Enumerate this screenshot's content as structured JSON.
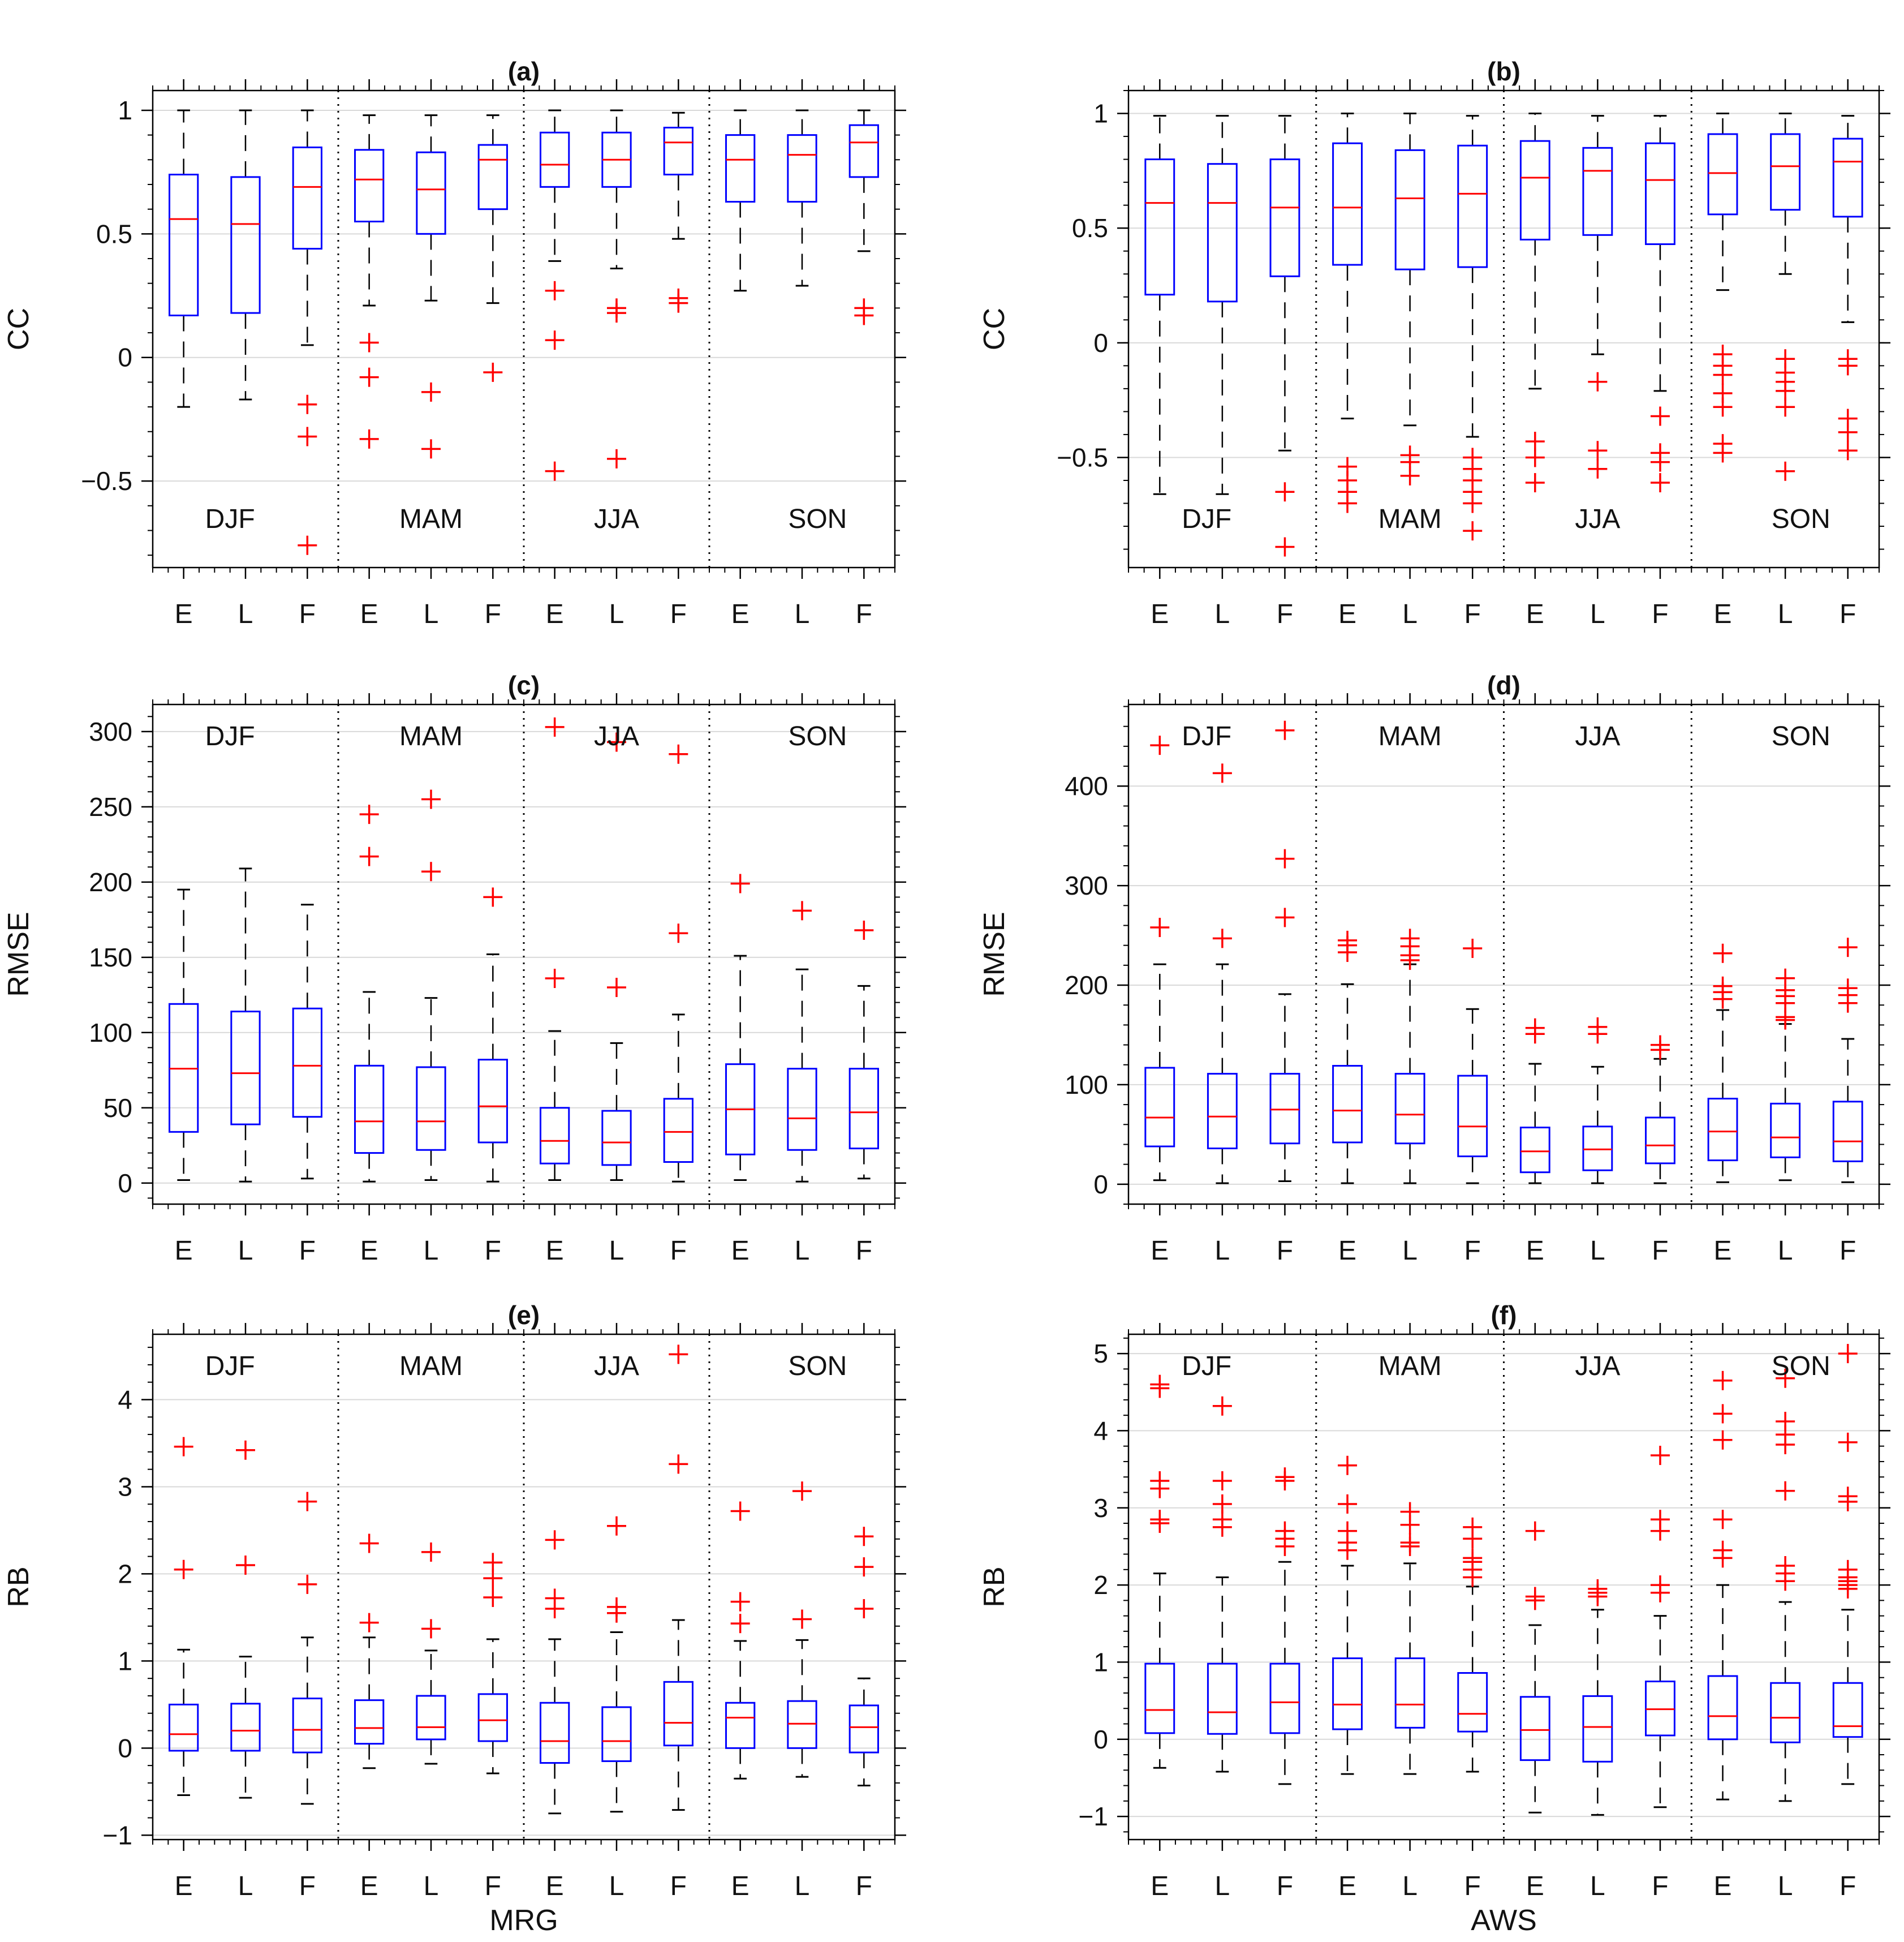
{
  "chart_data": [
    {
      "id": "a",
      "type": "box",
      "title": "(a)",
      "ylabel": "CC",
      "xlabel": "",
      "categories": [
        "E",
        "L",
        "F",
        "E",
        "L",
        "F",
        "E",
        "L",
        "F",
        "E",
        "L",
        "F"
      ],
      "seasons": [
        "DJF",
        "MAM",
        "JJA",
        "SON"
      ],
      "ylim": [
        -0.85,
        1.08
      ],
      "yticks": [
        -0.5,
        0,
        0.5,
        1
      ],
      "ytick_labels": [
        "−0.5",
        "0",
        "0.5",
        "1"
      ],
      "season_label_pos": "bottom",
      "boxes": [
        {
          "min": -0.2,
          "q1": 0.17,
          "median": 0.56,
          "q3": 0.74,
          "max": 1.0,
          "outliers": []
        },
        {
          "min": -0.17,
          "q1": 0.18,
          "median": 0.54,
          "q3": 0.73,
          "max": 1.0,
          "outliers": []
        },
        {
          "min": 0.05,
          "q1": 0.44,
          "median": 0.69,
          "q3": 0.85,
          "max": 1.0,
          "outliers": [
            -0.19,
            -0.32,
            -0.76
          ]
        },
        {
          "min": 0.21,
          "q1": 0.55,
          "median": 0.72,
          "q3": 0.84,
          "max": 0.98,
          "outliers": [
            0.06,
            -0.08,
            -0.33
          ]
        },
        {
          "min": 0.23,
          "q1": 0.5,
          "median": 0.68,
          "q3": 0.83,
          "max": 0.98,
          "outliers": [
            -0.14,
            -0.37
          ]
        },
        {
          "min": 0.22,
          "q1": 0.6,
          "median": 0.8,
          "q3": 0.86,
          "max": 0.98,
          "outliers": [
            -0.06
          ]
        },
        {
          "min": 0.39,
          "q1": 0.69,
          "median": 0.78,
          "q3": 0.91,
          "max": 1.0,
          "outliers": [
            0.27,
            0.07,
            -0.46
          ]
        },
        {
          "min": 0.36,
          "q1": 0.69,
          "median": 0.8,
          "q3": 0.91,
          "max": 1.0,
          "outliers": [
            0.2,
            0.18,
            -0.41
          ]
        },
        {
          "min": 0.48,
          "q1": 0.74,
          "median": 0.87,
          "q3": 0.93,
          "max": 0.99,
          "outliers": [
            0.24,
            0.22
          ]
        },
        {
          "min": 0.27,
          "q1": 0.63,
          "median": 0.8,
          "q3": 0.9,
          "max": 1.0,
          "outliers": []
        },
        {
          "min": 0.29,
          "q1": 0.63,
          "median": 0.82,
          "q3": 0.9,
          "max": 1.0,
          "outliers": []
        },
        {
          "min": 0.43,
          "q1": 0.73,
          "median": 0.87,
          "q3": 0.94,
          "max": 1.0,
          "outliers": [
            0.2,
            0.17
          ]
        }
      ]
    },
    {
      "id": "b",
      "type": "box",
      "title": "(b)",
      "ylabel": "CC",
      "xlabel": "",
      "categories": [
        "E",
        "L",
        "F",
        "E",
        "L",
        "F",
        "E",
        "L",
        "F",
        "E",
        "L",
        "F"
      ],
      "seasons": [
        "DJF",
        "MAM",
        "JJA",
        "SON"
      ],
      "ylim": [
        -0.98,
        1.1
      ],
      "yticks": [
        -0.5,
        0,
        0.5,
        1
      ],
      "ytick_labels": [
        "−0.5",
        "0",
        "0.5",
        "1"
      ],
      "season_label_pos": "bottom",
      "boxes": [
        {
          "min": -0.66,
          "q1": 0.21,
          "median": 0.61,
          "q3": 0.8,
          "max": 0.99,
          "outliers": []
        },
        {
          "min": -0.66,
          "q1": 0.18,
          "median": 0.61,
          "q3": 0.78,
          "max": 0.99,
          "outliers": []
        },
        {
          "min": -0.47,
          "q1": 0.29,
          "median": 0.59,
          "q3": 0.8,
          "max": 0.99,
          "outliers": [
            -0.65,
            -0.89
          ]
        },
        {
          "min": -0.33,
          "q1": 0.34,
          "median": 0.59,
          "q3": 0.87,
          "max": 1.0,
          "outliers": [
            -0.54,
            -0.6,
            -0.65,
            -0.7
          ]
        },
        {
          "min": -0.36,
          "q1": 0.32,
          "median": 0.63,
          "q3": 0.84,
          "max": 1.0,
          "outliers": [
            -0.49,
            -0.52,
            -0.58
          ]
        },
        {
          "min": -0.41,
          "q1": 0.33,
          "median": 0.65,
          "q3": 0.86,
          "max": 0.99,
          "outliers": [
            -0.5,
            -0.55,
            -0.6,
            -0.65,
            -0.7,
            -0.82
          ]
        },
        {
          "min": -0.2,
          "q1": 0.45,
          "median": 0.72,
          "q3": 0.88,
          "max": 1.0,
          "outliers": [
            -0.43,
            -0.5,
            -0.61
          ]
        },
        {
          "min": -0.05,
          "q1": 0.47,
          "median": 0.75,
          "q3": 0.85,
          "max": 0.99,
          "outliers": [
            -0.17,
            -0.47,
            -0.55
          ]
        },
        {
          "min": -0.21,
          "q1": 0.43,
          "median": 0.71,
          "q3": 0.87,
          "max": 0.99,
          "outliers": [
            -0.32,
            -0.48,
            -0.52,
            -0.61
          ]
        },
        {
          "min": 0.23,
          "q1": 0.56,
          "median": 0.74,
          "q3": 0.91,
          "max": 1.0,
          "outliers": [
            -0.05,
            -0.1,
            -0.14,
            -0.22,
            -0.28,
            -0.44,
            -0.48
          ]
        },
        {
          "min": 0.3,
          "q1": 0.58,
          "median": 0.77,
          "q3": 0.91,
          "max": 1.0,
          "outliers": [
            -0.07,
            -0.13,
            -0.17,
            -0.21,
            -0.28,
            -0.56
          ]
        },
        {
          "min": 0.09,
          "q1": 0.55,
          "median": 0.79,
          "q3": 0.89,
          "max": 0.99,
          "outliers": [
            -0.07,
            -0.1,
            -0.33,
            -0.39,
            -0.47
          ]
        }
      ]
    },
    {
      "id": "c",
      "type": "box",
      "title": "(c)",
      "ylabel": "RMSE",
      "xlabel": "",
      "categories": [
        "E",
        "L",
        "F",
        "E",
        "L",
        "F",
        "E",
        "L",
        "F",
        "E",
        "L",
        "F"
      ],
      "seasons": [
        "DJF",
        "MAM",
        "JJA",
        "SON"
      ],
      "ylim": [
        -14,
        318
      ],
      "yticks": [
        0,
        50,
        100,
        150,
        200,
        250,
        300
      ],
      "ytick_labels": [
        "0",
        "50",
        "100",
        "150",
        "200",
        "250",
        "300"
      ],
      "season_label_pos": "top",
      "boxes": [
        {
          "min": 2,
          "q1": 34,
          "median": 76,
          "q3": 119,
          "max": 195,
          "outliers": []
        },
        {
          "min": 1,
          "q1": 39,
          "median": 73,
          "q3": 114,
          "max": 209,
          "outliers": []
        },
        {
          "min": 3,
          "q1": 44,
          "median": 78,
          "q3": 116,
          "max": 185,
          "outliers": []
        },
        {
          "min": 1,
          "q1": 20,
          "median": 41,
          "q3": 78,
          "max": 127,
          "outliers": [
            245,
            217
          ]
        },
        {
          "min": 2,
          "q1": 22,
          "median": 41,
          "q3": 77,
          "max": 123,
          "outliers": [
            255,
            207
          ]
        },
        {
          "min": 1,
          "q1": 27,
          "median": 51,
          "q3": 82,
          "max": 152,
          "outliers": [
            190
          ]
        },
        {
          "min": 2,
          "q1": 13,
          "median": 28,
          "q3": 50,
          "max": 101,
          "outliers": [
            303,
            136
          ]
        },
        {
          "min": 2,
          "q1": 12,
          "median": 27,
          "q3": 48,
          "max": 93,
          "outliers": [
            293,
            130
          ]
        },
        {
          "min": 1,
          "q1": 14,
          "median": 34,
          "q3": 56,
          "max": 112,
          "outliers": [
            285,
            166
          ]
        },
        {
          "min": 2,
          "q1": 19,
          "median": 49,
          "q3": 79,
          "max": 151,
          "outliers": [
            199
          ]
        },
        {
          "min": 1,
          "q1": 22,
          "median": 43,
          "q3": 76,
          "max": 142,
          "outliers": [
            181
          ]
        },
        {
          "min": 3,
          "q1": 23,
          "median": 47,
          "q3": 76,
          "max": 131,
          "outliers": [
            168
          ]
        }
      ]
    },
    {
      "id": "d",
      "type": "box",
      "title": "(d)",
      "ylabel": "RMSE",
      "xlabel": "",
      "categories": [
        "E",
        "L",
        "F",
        "E",
        "L",
        "F",
        "E",
        "L",
        "F",
        "E",
        "L",
        "F"
      ],
      "seasons": [
        "DJF",
        "MAM",
        "JJA",
        "SON"
      ],
      "ylim": [
        -20,
        482
      ],
      "yticks": [
        0,
        100,
        200,
        300,
        400
      ],
      "ytick_labels": [
        "0",
        "100",
        "200",
        "300",
        "400"
      ],
      "season_label_pos": "top",
      "boxes": [
        {
          "min": 4,
          "q1": 38,
          "median": 67,
          "q3": 117,
          "max": 221,
          "outliers": [
            441,
            258
          ]
        },
        {
          "min": 1,
          "q1": 36,
          "median": 68,
          "q3": 111,
          "max": 221,
          "outliers": [
            413,
            247
          ]
        },
        {
          "min": 3,
          "q1": 41,
          "median": 75,
          "q3": 111,
          "max": 191,
          "outliers": [
            456,
            327,
            268
          ]
        },
        {
          "min": 1,
          "q1": 42,
          "median": 74,
          "q3": 119,
          "max": 201,
          "outliers": [
            245,
            240,
            233
          ]
        },
        {
          "min": 1,
          "q1": 41,
          "median": 70,
          "q3": 111,
          "max": 221,
          "outliers": [
            247,
            239,
            230,
            225
          ]
        },
        {
          "min": 1,
          "q1": 28,
          "median": 58,
          "q3": 109,
          "max": 176,
          "outliers": [
            237
          ]
        },
        {
          "min": 1,
          "q1": 12,
          "median": 33,
          "q3": 57,
          "max": 121,
          "outliers": [
            157,
            151
          ]
        },
        {
          "min": 1,
          "q1": 14,
          "median": 35,
          "q3": 58,
          "max": 118,
          "outliers": [
            158,
            151
          ]
        },
        {
          "min": 1,
          "q1": 21,
          "median": 39,
          "q3": 67,
          "max": 126,
          "outliers": [
            140,
            135
          ]
        },
        {
          "min": 2,
          "q1": 24,
          "median": 53,
          "q3": 86,
          "max": 175,
          "outliers": [
            232,
            199,
            193,
            186
          ]
        },
        {
          "min": 4,
          "q1": 27,
          "median": 47,
          "q3": 81,
          "max": 161,
          "outliers": [
            207,
            195,
            189,
            182,
            168,
            165
          ]
        },
        {
          "min": 2,
          "q1": 23,
          "median": 43,
          "q3": 83,
          "max": 146,
          "outliers": [
            238,
            197,
            190,
            182
          ]
        }
      ]
    },
    {
      "id": "e",
      "type": "box",
      "title": "(e)",
      "ylabel": "RB",
      "xlabel": "MRG",
      "categories": [
        "E",
        "L",
        "F",
        "E",
        "L",
        "F",
        "E",
        "L",
        "F",
        "E",
        "L",
        "F"
      ],
      "seasons": [
        "DJF",
        "MAM",
        "JJA",
        "SON"
      ],
      "ylim": [
        -1.05,
        4.75
      ],
      "yticks": [
        -1,
        0,
        1,
        2,
        3,
        4
      ],
      "ytick_labels": [
        "−1",
        "0",
        "1",
        "2",
        "3",
        "4"
      ],
      "season_label_pos": "top",
      "boxes": [
        {
          "min": -0.54,
          "q1": -0.03,
          "median": 0.16,
          "q3": 0.5,
          "max": 1.13,
          "outliers": [
            3.46,
            2.05
          ]
        },
        {
          "min": -0.57,
          "q1": -0.03,
          "median": 0.2,
          "q3": 0.51,
          "max": 1.05,
          "outliers": [
            3.42,
            2.1
          ]
        },
        {
          "min": -0.64,
          "q1": -0.05,
          "median": 0.21,
          "q3": 0.57,
          "max": 1.27,
          "outliers": [
            2.83,
            1.88
          ]
        },
        {
          "min": -0.23,
          "q1": 0.05,
          "median": 0.23,
          "q3": 0.55,
          "max": 1.27,
          "outliers": [
            2.35,
            1.44
          ]
        },
        {
          "min": -0.18,
          "q1": 0.1,
          "median": 0.24,
          "q3": 0.6,
          "max": 1.12,
          "outliers": [
            2.25,
            1.37
          ]
        },
        {
          "min": -0.29,
          "q1": 0.08,
          "median": 0.32,
          "q3": 0.62,
          "max": 1.25,
          "outliers": [
            2.13,
            1.95,
            1.73
          ]
        },
        {
          "min": -0.75,
          "q1": -0.17,
          "median": 0.08,
          "q3": 0.52,
          "max": 1.25,
          "outliers": [
            2.39,
            1.72,
            1.6
          ]
        },
        {
          "min": -0.73,
          "q1": -0.15,
          "median": 0.08,
          "q3": 0.47,
          "max": 1.33,
          "outliers": [
            2.55,
            1.62,
            1.55
          ]
        },
        {
          "min": -0.71,
          "q1": 0.03,
          "median": 0.29,
          "q3": 0.76,
          "max": 1.47,
          "outliers": [
            4.52,
            3.26
          ]
        },
        {
          "min": -0.35,
          "q1": 0.0,
          "median": 0.35,
          "q3": 0.52,
          "max": 1.23,
          "outliers": [
            2.72,
            1.68,
            1.43
          ]
        },
        {
          "min": -0.33,
          "q1": 0.0,
          "median": 0.28,
          "q3": 0.54,
          "max": 1.24,
          "outliers": [
            2.95,
            1.48
          ]
        },
        {
          "min": -0.43,
          "q1": -0.05,
          "median": 0.24,
          "q3": 0.49,
          "max": 0.8,
          "outliers": [
            2.43,
            2.08,
            1.6
          ]
        }
      ]
    },
    {
      "id": "f",
      "type": "box",
      "title": "(f)",
      "ylabel": "RB",
      "xlabel": "AWS",
      "categories": [
        "E",
        "L",
        "F",
        "E",
        "L",
        "F",
        "E",
        "L",
        "F",
        "E",
        "L",
        "F"
      ],
      "seasons": [
        "DJF",
        "MAM",
        "JJA",
        "SON"
      ],
      "ylim": [
        -1.3,
        5.25
      ],
      "yticks": [
        -1,
        0,
        1,
        2,
        3,
        4,
        5
      ],
      "ytick_labels": [
        "−1",
        "0",
        "1",
        "2",
        "3",
        "4",
        "5"
      ],
      "season_label_pos": "top",
      "boxes": [
        {
          "min": -0.37,
          "q1": 0.08,
          "median": 0.38,
          "q3": 0.98,
          "max": 2.15,
          "outliers": [
            4.6,
            4.55,
            3.35,
            3.25,
            2.85,
            2.8
          ]
        },
        {
          "min": -0.42,
          "q1": 0.07,
          "median": 0.35,
          "q3": 0.98,
          "max": 2.1,
          "outliers": [
            4.32,
            3.35,
            3.05,
            2.85,
            2.75
          ]
        },
        {
          "min": -0.58,
          "q1": 0.08,
          "median": 0.48,
          "q3": 0.98,
          "max": 2.3,
          "outliers": [
            3.4,
            3.35,
            2.7,
            2.6,
            2.5
          ]
        },
        {
          "min": -0.45,
          "q1": 0.13,
          "median": 0.45,
          "q3": 1.05,
          "max": 2.25,
          "outliers": [
            3.55,
            3.05,
            2.7,
            2.55,
            2.45
          ]
        },
        {
          "min": -0.45,
          "q1": 0.15,
          "median": 0.45,
          "q3": 1.05,
          "max": 2.28,
          "outliers": [
            2.95,
            2.78,
            2.55,
            2.5
          ]
        },
        {
          "min": -0.42,
          "q1": 0.1,
          "median": 0.33,
          "q3": 0.86,
          "max": 1.98,
          "outliers": [
            2.75,
            2.6,
            2.35,
            2.3,
            2.2,
            2.1
          ]
        },
        {
          "min": -0.95,
          "q1": -0.27,
          "median": 0.12,
          "q3": 0.55,
          "max": 1.48,
          "outliers": [
            2.7,
            1.85,
            1.8
          ]
        },
        {
          "min": -0.98,
          "q1": -0.29,
          "median": 0.16,
          "q3": 0.56,
          "max": 1.68,
          "outliers": [
            1.95,
            1.9,
            1.85
          ]
        },
        {
          "min": -0.88,
          "q1": 0.05,
          "median": 0.39,
          "q3": 0.75,
          "max": 1.6,
          "outliers": [
            3.68,
            2.85,
            2.7,
            2.0,
            1.9
          ]
        },
        {
          "min": -0.78,
          "q1": 0.0,
          "median": 0.3,
          "q3": 0.82,
          "max": 2.0,
          "outliers": [
            4.65,
            4.22,
            3.88,
            2.85,
            2.45,
            2.35
          ]
        },
        {
          "min": -0.8,
          "q1": -0.04,
          "median": 0.28,
          "q3": 0.73,
          "max": 1.78,
          "outliers": [
            4.68,
            4.12,
            3.95,
            3.82,
            3.22,
            2.25,
            2.15,
            2.05
          ]
        },
        {
          "min": -0.58,
          "q1": 0.03,
          "median": 0.17,
          "q3": 0.73,
          "max": 1.68,
          "outliers": [
            5.0,
            3.85,
            3.15,
            3.08,
            2.2,
            2.1,
            2.05,
            2.0,
            1.95
          ]
        }
      ]
    }
  ]
}
